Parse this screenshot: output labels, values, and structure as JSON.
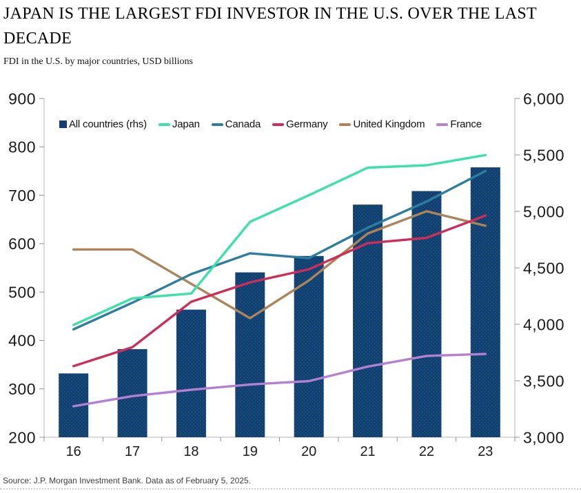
{
  "header": {
    "title_line1": "JAPAN IS THE LARGEST FDI INVESTOR IN THE U.S. OVER THE LAST",
    "title_line2": "DECADE",
    "subtitle": "FDI in the U.S. by major countries, USD billions"
  },
  "source": {
    "text": "Source: J.P. Morgan Investment Bank. Data as of February 5, 2025."
  },
  "chart_data": {
    "type": "bar+line combo, dual axis",
    "title": "JAPAN IS THE LARGEST FDI INVESTOR IN THE U.S. OVER THE LAST DECADE",
    "subtitle": "FDI in the U.S. by major countries, USD billions",
    "categories": [
      "16",
      "17",
      "18",
      "19",
      "20",
      "21",
      "22",
      "23"
    ],
    "bar_series": {
      "name": "All countries (rhs)",
      "axis": "right",
      "color": "#123d78",
      "dot_color": "#1e7a4e",
      "values": [
        3565,
        3780,
        4130,
        4460,
        4605,
        5060,
        5180,
        5390
      ]
    },
    "line_series": [
      {
        "name": "Japan",
        "axis": "left",
        "color": "#3be2a7",
        "values": [
          432,
          487,
          497,
          645,
          700,
          757,
          762,
          783
        ]
      },
      {
        "name": "Canada",
        "axis": "left",
        "color": "#2d7e9e",
        "values": [
          423,
          478,
          537,
          580,
          570,
          633,
          687,
          750
        ]
      },
      {
        "name": "Germany",
        "axis": "left",
        "color": "#cf2d59",
        "values": [
          347,
          386,
          480,
          520,
          547,
          601,
          612,
          658
        ]
      },
      {
        "name": "United Kingdom",
        "axis": "left",
        "color": "#ac8459",
        "values": [
          588,
          588,
          517,
          446,
          524,
          621,
          667,
          637
        ]
      },
      {
        "name": "France",
        "axis": "left",
        "color": "#b480d4",
        "values": [
          264,
          285,
          298,
          309,
          316,
          346,
          368,
          372
        ]
      }
    ],
    "left_axis": {
      "min": 200,
      "max": 900,
      "tick_step": 100,
      "ticks": [
        900,
        800,
        700,
        600,
        500,
        400,
        300,
        200
      ],
      "tick_labels": [
        "900",
        "800",
        "700",
        "600",
        "500",
        "400",
        "300",
        "200"
      ]
    },
    "right_axis": {
      "min": 3000,
      "max": 6000,
      "tick_step": 500,
      "ticks": [
        6000,
        5500,
        5000,
        4500,
        4000,
        3500,
        3000
      ],
      "tick_labels": [
        "6,000",
        "5,500",
        "5,000",
        "4,500",
        "4,000",
        "3,500",
        "3,000"
      ]
    },
    "grid": false,
    "legend_position": "top-inside",
    "colors": {
      "axis_line": "#b5b5b5",
      "tick_mark": "#8f8f8f",
      "tick_label": "#1a1a1a"
    }
  }
}
